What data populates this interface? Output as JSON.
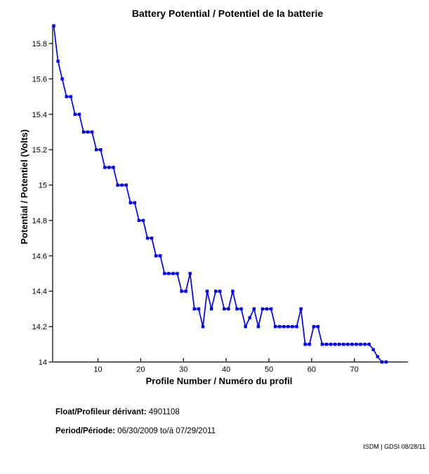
{
  "page": {
    "background": "#ffffff"
  },
  "chart_data": {
    "type": "line",
    "title": "Battery Potential / Potentiel de la batterie",
    "xlabel": "Profile Number / Numéro du profil",
    "ylabel": "Potential / Potentiel (Volts)",
    "line_color": "#0000ff",
    "axis_color": "#000000",
    "marker": "filled-square",
    "legend": "none",
    "grid": false,
    "xlim": [
      0,
      83
    ],
    "ylim": [
      14.0,
      15.9
    ],
    "xticks": [
      10,
      20,
      30,
      40,
      50,
      60,
      70
    ],
    "yticks": [
      14.0,
      14.2,
      14.4,
      14.6,
      14.8,
      15.0,
      15.2,
      15.4,
      15.6,
      15.8
    ],
    "ytick_labels": [
      "14",
      "14.2",
      "14.4",
      "14.6",
      "14.8",
      "15",
      "15.2",
      "15.4",
      "15.6",
      "15.8"
    ],
    "x": [
      1,
      2,
      3,
      4,
      5,
      6,
      7,
      8,
      9,
      10,
      11,
      12,
      13,
      14,
      15,
      16,
      17,
      18,
      19,
      20,
      21,
      22,
      23,
      24,
      25,
      26,
      27,
      28,
      29,
      30,
      31,
      32,
      33,
      34,
      35,
      36,
      37,
      38,
      39,
      40,
      41,
      42,
      43,
      44,
      45,
      46,
      47,
      48,
      49,
      50,
      51,
      52,
      53,
      54,
      55,
      56,
      57,
      58,
      59,
      60,
      61,
      62,
      63,
      64,
      65,
      66,
      67,
      68,
      69,
      70,
      71,
      72,
      73,
      74,
      75,
      76,
      77,
      78,
      79
    ],
    "values": [
      15.9,
      15.7,
      15.6,
      15.5,
      15.5,
      15.4,
      15.4,
      15.3,
      15.3,
      15.3,
      15.2,
      15.2,
      15.1,
      15.1,
      15.1,
      15.0,
      15.0,
      15.0,
      14.9,
      14.9,
      14.8,
      14.8,
      14.7,
      14.7,
      14.6,
      14.6,
      14.5,
      14.5,
      14.5,
      14.5,
      14.4,
      14.4,
      14.5,
      14.3,
      14.3,
      14.2,
      14.4,
      14.3,
      14.4,
      14.4,
      14.3,
      14.3,
      14.4,
      14.3,
      14.3,
      14.2,
      14.25,
      14.3,
      14.2,
      14.3,
      14.3,
      14.3,
      14.2,
      14.2,
      14.2,
      14.2,
      14.2,
      14.2,
      14.3,
      14.1,
      14.1,
      14.2,
      14.2,
      14.1,
      14.1,
      14.1,
      14.1,
      14.1,
      14.1,
      14.1,
      14.1,
      14.1,
      14.1,
      14.1,
      14.1,
      14.07,
      14.03,
      14.0,
      14.0
    ]
  },
  "footer": {
    "float_label": "Float/Profileur dérivant:",
    "float_value": " 4901108",
    "period_label": "Period/Période:",
    "period_value": " 06/30/2009  to/à  07/29/2011",
    "credit": "ISDM | GDSI 08/28/11"
  }
}
